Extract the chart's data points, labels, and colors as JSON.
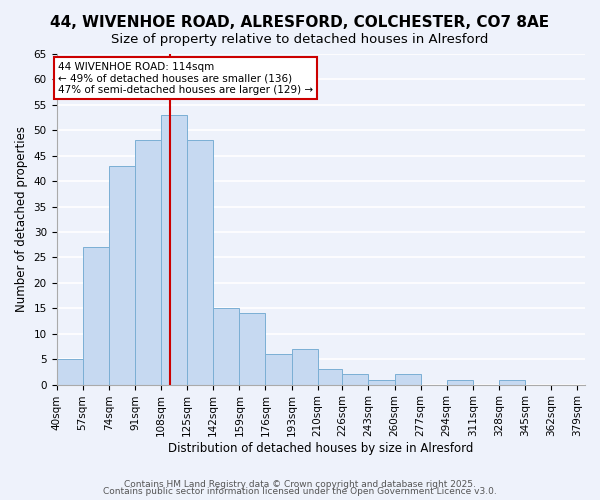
{
  "title": "44, WIVENHOE ROAD, ALRESFORD, COLCHESTER, CO7 8AE",
  "subtitle": "Size of property relative to detached houses in Alresford",
  "xlabel": "Distribution of detached houses by size in Alresford",
  "ylabel": "Number of detached properties",
  "footer_line1": "Contains HM Land Registry data © Crown copyright and database right 2025.",
  "footer_line2": "Contains public sector information licensed under the Open Government Licence v3.0.",
  "bar_values": [
    5,
    27,
    43,
    48,
    53,
    48,
    15,
    14,
    6,
    7,
    3,
    2,
    1,
    2,
    0,
    1,
    0,
    1
  ],
  "bar_labels": [
    "40sqm",
    "57sqm",
    "74sqm",
    "91sqm",
    "108sqm",
    "125sqm",
    "142sqm",
    "159sqm",
    "176sqm",
    "193sqm",
    "210sqm",
    "226sqm",
    "243sqm",
    "260sqm",
    "277sqm",
    "294sqm",
    "311sqm",
    "328sqm",
    "345sqm",
    "362sqm",
    "379sqm"
  ],
  "bar_color": "#c6d9f1",
  "bar_edge_color": "#7bafd4",
  "bar_left_edges": [
    40,
    57,
    74,
    91,
    108,
    125,
    142,
    159,
    176,
    193,
    210,
    226,
    243,
    260,
    277,
    294,
    311,
    328
  ],
  "bar_widths_val": [
    17,
    17,
    17,
    17,
    17,
    17,
    17,
    17,
    17,
    17,
    16,
    17,
    17,
    17,
    17,
    17,
    17,
    17
  ],
  "vline_x": 114,
  "vline_color": "#cc0000",
  "annotation_text_line1": "44 WIVENHOE ROAD: 114sqm",
  "annotation_text_line2": "← 49% of detached houses are smaller (136)",
  "annotation_text_line3": "47% of semi-detached houses are larger (129) →",
  "annotation_box_color": "#cc0000",
  "ylim": [
    0,
    65
  ],
  "yticks": [
    0,
    5,
    10,
    15,
    20,
    25,
    30,
    35,
    40,
    45,
    50,
    55,
    60,
    65
  ],
  "background_color": "#eef2fb",
  "plot_bg_color": "#eef2fb",
  "grid_color": "#ffffff",
  "title_fontsize": 11,
  "subtitle_fontsize": 9.5,
  "axis_label_fontsize": 8.5,
  "tick_fontsize": 7.5,
  "footer_fontsize": 6.5
}
